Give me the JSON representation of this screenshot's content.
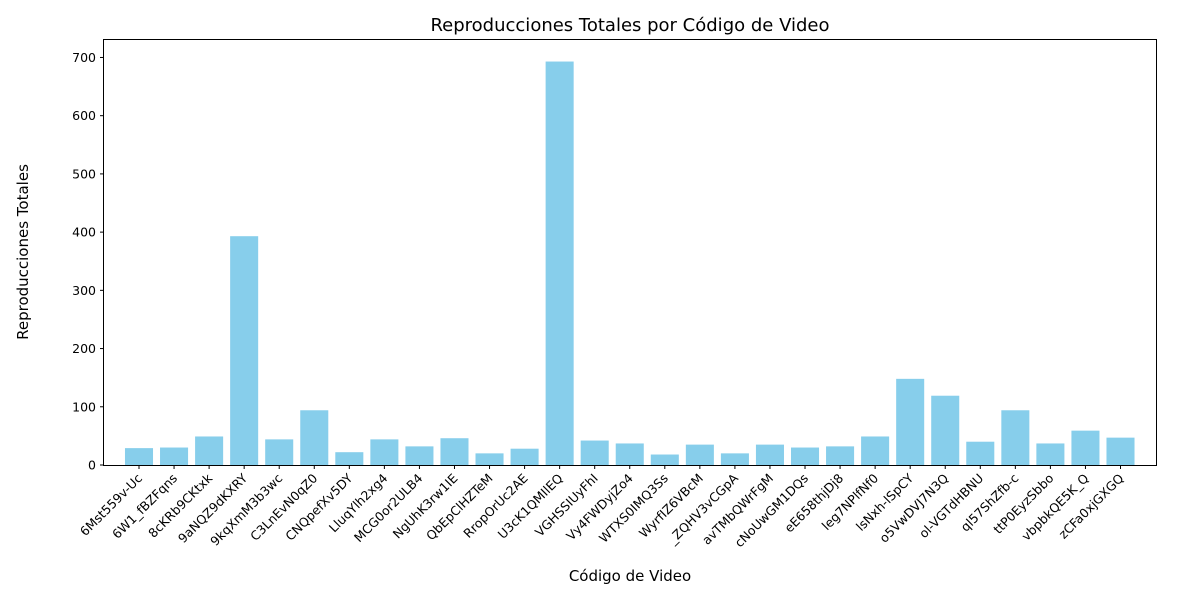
{
  "chart_data": {
    "type": "bar",
    "title": "Reproducciones Totales por Código de Video",
    "xlabel": "Código de Video",
    "ylabel": "Reproducciones Totales",
    "ylim": [
      0,
      730
    ],
    "yticks": [
      0,
      100,
      200,
      300,
      400,
      500,
      600,
      700
    ],
    "grid": false,
    "legend": "none",
    "bar_color": "#87ceeb",
    "categories": [
      "6Mst559v-Uc",
      "6W1_fBZFqns",
      "8cKRb9CKtxk",
      "9aNQZ9dKXRY",
      "9kqXmM3b3wc",
      "C3LnEvN0qZ0",
      "CNQpefXv5DY",
      "LluqYlh2xg4",
      "MCG0or2ULB4",
      "NgUhK3rw1IE",
      "QbEpClHZTeM",
      "RropOrUc2AE",
      "U3cK1QMIlEQ",
      "VGHSSIUyFhI",
      "Vy4FWDyjZo4",
      "WTXS0IMQ3Ss",
      "WyrfIZ6VBcM",
      "_ZQHV3vCGpA",
      "avTMbQWrFgM",
      "cNoUwGM1DQs",
      "eE658thjDj8",
      "leg7NPlfNf0",
      "lsNxh-lSpCY",
      "o5VwDVJ7N3Q",
      "ol-VGTdHBNU",
      "ql57ShZfb-c",
      "ttP0EyzSbbo",
      "vbpbkQE5K_Q",
      "zCFa0xjGXGQ"
    ],
    "values": [
      29,
      30,
      49,
      393,
      44,
      94,
      22,
      44,
      32,
      46,
      20,
      28,
      693,
      42,
      37,
      18,
      35,
      20,
      35,
      30,
      32,
      49,
      148,
      119,
      40,
      94,
      37,
      59,
      47
    ]
  }
}
